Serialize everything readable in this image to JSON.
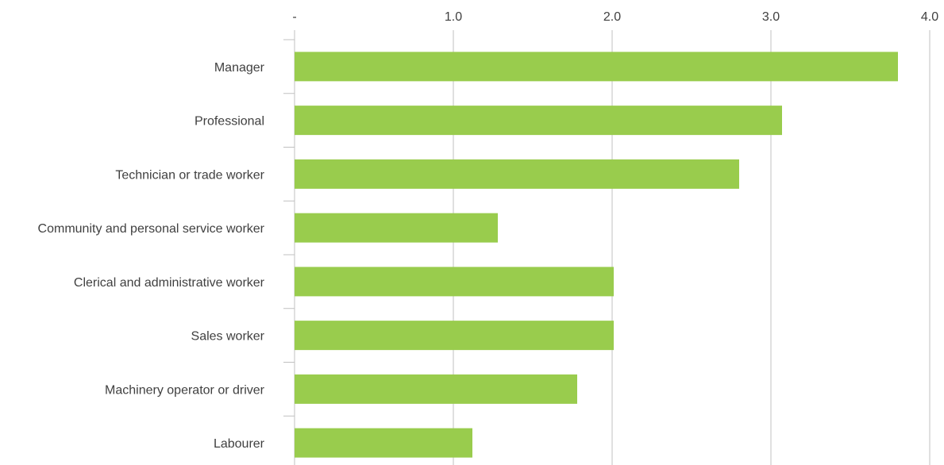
{
  "chart_data": {
    "type": "bar",
    "orientation": "horizontal",
    "title": "",
    "xlabel": "",
    "ylabel": "",
    "xlim": [
      0,
      4
    ],
    "ticks": [
      {
        "value": 0,
        "label": "-"
      },
      {
        "value": 1,
        "label": "1.0"
      },
      {
        "value": 2,
        "label": "2.0"
      },
      {
        "value": 3,
        "label": "3.0"
      },
      {
        "value": 4,
        "label": "4.0"
      }
    ],
    "categories": [
      "Manager",
      "Professional",
      "Technician or trade worker",
      "Community and personal service worker",
      "Clerical and administrative worker",
      "Sales worker",
      "Machinery operator or driver",
      "Labourer"
    ],
    "values": [
      3.8,
      3.07,
      2.8,
      1.28,
      2.01,
      2.01,
      1.78,
      1.12
    ],
    "bar_color": "#99cc4d",
    "gridline_color": "#c0c0c0",
    "grid": true,
    "axis_position": "top",
    "legend": "none"
  }
}
